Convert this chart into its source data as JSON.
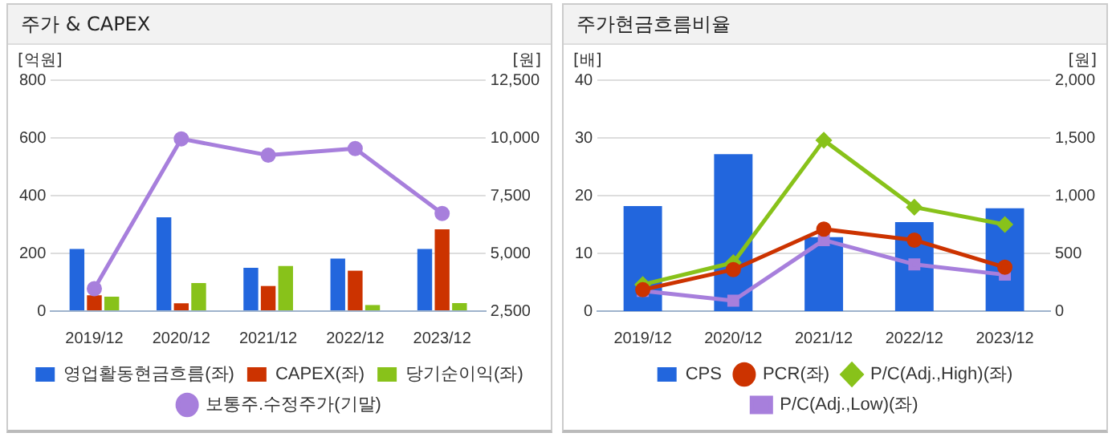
{
  "chart_data": [
    {
      "type": "bar",
      "title": "주가 & CAPEX",
      "ylabel": "[억원]",
      "y2label": "[원]",
      "categories": [
        "2019/12",
        "2020/12",
        "2021/12",
        "2022/12",
        "2023/12"
      ],
      "series": [
        {
          "name": "영업활동현금흐름(좌)",
          "color": "#2266dd",
          "values": [
            215,
            325,
            150,
            182,
            215
          ]
        },
        {
          "name": "CAPEX(좌)",
          "color": "#cc3300",
          "values": [
            55,
            27,
            87,
            140,
            283
          ]
        },
        {
          "name": "당기순이익(좌)",
          "color": "#88c21a",
          "values": [
            50,
            97,
            156,
            21,
            28
          ]
        },
        {
          "name": "보통주.수정주가(기말)",
          "type": "line",
          "axis": "y2",
          "marker": "circle",
          "color": "#a77fdc",
          "values": [
            3470,
            9960,
            9250,
            9540,
            6730
          ]
        }
      ],
      "ylim": [
        0,
        800
      ],
      "yticks": [
        0,
        200,
        400,
        600,
        800
      ],
      "y2lim": [
        2500,
        12500
      ],
      "y2ticks": [
        {
          "value": 2500,
          "label": "2,500"
        },
        {
          "value": 5000,
          "label": "5,000"
        },
        {
          "value": 7500,
          "label": "7,500"
        },
        {
          "value": 10000,
          "label": "10,000"
        },
        {
          "value": 12500,
          "label": "12,500"
        }
      ],
      "grid": "y",
      "legend": "bottom"
    },
    {
      "type": "bar",
      "title": "주가현금흐름비율",
      "ylabel": "[배]",
      "y2label": "[원]",
      "categories": [
        "2019/12",
        "2020/12",
        "2021/12",
        "2022/12",
        "2023/12"
      ],
      "series": [
        {
          "name": "CPS",
          "color": "#2266dd",
          "axis": "y2",
          "values": [
            910,
            1360,
            640,
            770,
            890
          ]
        },
        {
          "name": "PCR(좌)",
          "type": "line",
          "marker": "circle",
          "color": "#cc3300",
          "values": [
            3.7,
            7.2,
            14.2,
            12.3,
            7.6
          ]
        },
        {
          "name": "P/C(Adj.,High)(좌)",
          "type": "line",
          "marker": "diamond",
          "color": "#88c21a",
          "values": [
            4.6,
            8.4,
            29.6,
            18.0,
            15.0
          ]
        },
        {
          "name": "P/C(Adj.,Low)(좌)",
          "type": "line",
          "marker": "square",
          "color": "#a77fdc",
          "values": [
            3.5,
            1.8,
            12.3,
            8.1,
            6.3
          ]
        }
      ],
      "ylim": [
        0,
        40
      ],
      "yticks": [
        0,
        10,
        20,
        30,
        40
      ],
      "y2lim": [
        0,
        2000
      ],
      "y2ticks": [
        0,
        500,
        {
          "value": 1000,
          "label": "1,000"
        },
        {
          "value": 1500,
          "label": "1,500"
        },
        {
          "value": 2000,
          "label": "2,000"
        }
      ],
      "grid": "y",
      "legend": "bottom"
    }
  ]
}
